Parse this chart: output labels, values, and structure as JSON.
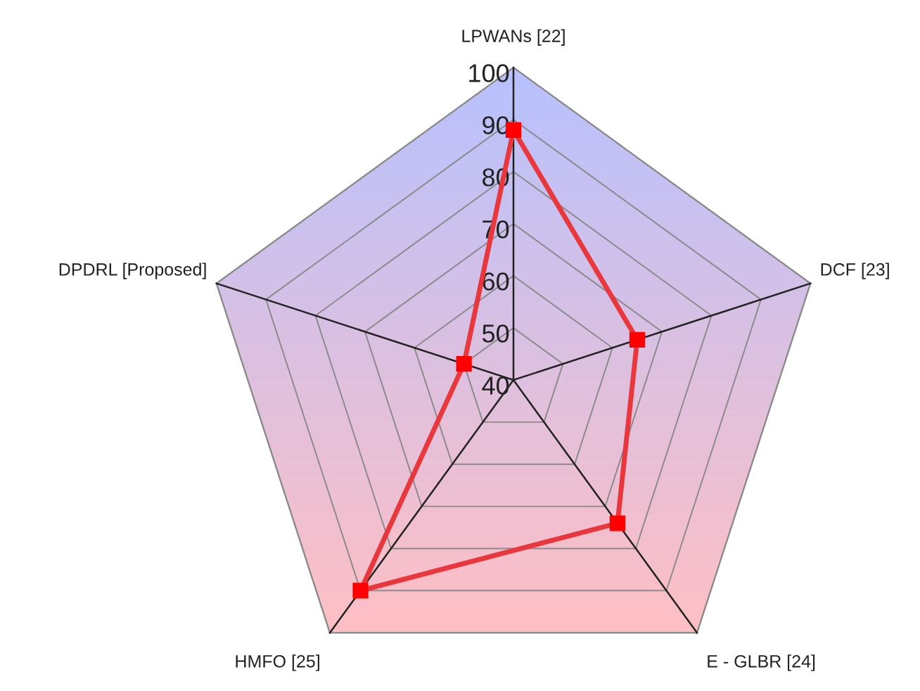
{
  "chart_data": {
    "type": "radar",
    "categories": [
      "LPWANs [22]",
      "DCF [23]",
      "E - GLBR [24]",
      "HMFO [25]",
      "DPDRL [Proposed]"
    ],
    "series": [
      {
        "color": "#e8383d",
        "values": [
          88,
          65,
          74,
          90,
          50
        ]
      }
    ],
    "ylim": [
      40,
      100
    ],
    "yticks": [
      40,
      50,
      60,
      70,
      80,
      90,
      100
    ],
    "marker": "square",
    "grid": true,
    "legend": false
  }
}
